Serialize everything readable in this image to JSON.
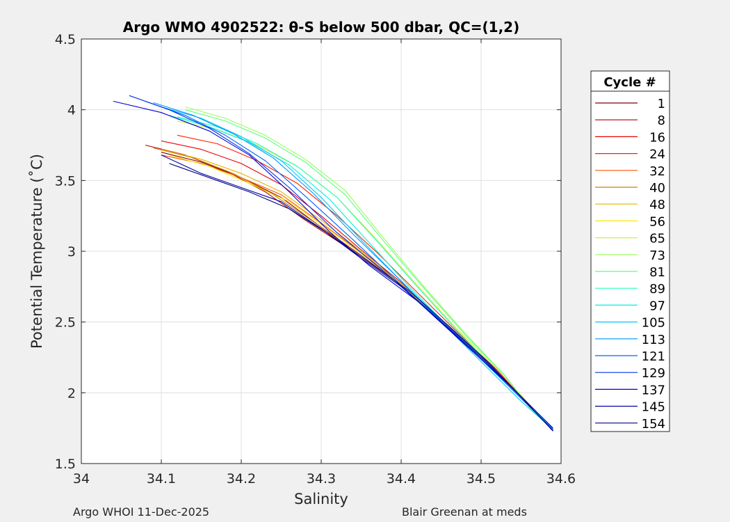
{
  "chart_data": {
    "type": "line",
    "title": "Argo WMO 4902522: θ-S below 500 dbar,  QC=(1,2)",
    "xlabel": "Salinity",
    "ylabel": "Potential Temperature (˚C)",
    "xlim": [
      34.0,
      34.6
    ],
    "ylim": [
      1.5,
      4.5
    ],
    "xticks": [
      "34",
      "34.1",
      "34.2",
      "34.3",
      "34.4",
      "34.5",
      "34.6"
    ],
    "yticks": [
      "1.5",
      "2",
      "2.5",
      "3",
      "3.5",
      "4",
      "4.5"
    ],
    "grid": true,
    "legend_title": "Cycle #",
    "legend_position": "right-outside",
    "colormap": "jet",
    "legend": [
      {
        "label": "1",
        "color": "#7f0000"
      },
      {
        "label": "8",
        "color": "#b40000"
      },
      {
        "label": "16",
        "color": "#e60000"
      },
      {
        "label": "24",
        "color": "#ff1e00"
      },
      {
        "label": "32",
        "color": "#ff5500"
      },
      {
        "label": "40",
        "color": "#c88200"
      },
      {
        "label": "48",
        "color": "#e6b400"
      },
      {
        "label": "56",
        "color": "#ffe600"
      },
      {
        "label": "65",
        "color": "#d2f03c"
      },
      {
        "label": "73",
        "color": "#96ff5a"
      },
      {
        "label": "81",
        "color": "#5aff82"
      },
      {
        "label": "89",
        "color": "#1effb4"
      },
      {
        "label": "97",
        "color": "#00f0dc"
      },
      {
        "label": "105",
        "color": "#00c8ff"
      },
      {
        "label": "113",
        "color": "#0096ff"
      },
      {
        "label": "121",
        "color": "#0064ff"
      },
      {
        "label": "129",
        "color": "#0032e6"
      },
      {
        "label": "137",
        "color": "#0000d2"
      },
      {
        "label": "145",
        "color": "#0000aa"
      },
      {
        "label": "154",
        "color": "#000080"
      }
    ],
    "series": [
      {
        "x": [
          34.1,
          34.15,
          34.2,
          34.25,
          34.3,
          34.35,
          34.4,
          34.45,
          34.5,
          34.55,
          34.59
        ],
        "y": [
          3.7,
          3.63,
          3.52,
          3.38,
          3.17,
          2.97,
          2.76,
          2.5,
          2.25,
          1.97,
          1.73
        ]
      },
      {
        "x": [
          34.08,
          34.13,
          34.18,
          34.23,
          34.28,
          34.34,
          34.4,
          34.45,
          34.5,
          34.55,
          34.59
        ],
        "y": [
          3.75,
          3.68,
          3.57,
          3.42,
          3.22,
          3.0,
          2.76,
          2.5,
          2.25,
          1.97,
          1.73
        ]
      },
      {
        "x": [
          34.1,
          34.15,
          34.2,
          34.25,
          34.3,
          34.35,
          34.4,
          34.45,
          34.5,
          34.55,
          34.59
        ],
        "y": [
          3.78,
          3.72,
          3.62,
          3.47,
          3.25,
          3.01,
          2.78,
          2.52,
          2.26,
          1.98,
          1.74
        ]
      },
      {
        "x": [
          34.12,
          34.17,
          34.22,
          34.27,
          34.32,
          34.37,
          34.42,
          34.47,
          34.52,
          34.56,
          34.59
        ],
        "y": [
          3.82,
          3.76,
          3.64,
          3.48,
          3.25,
          2.99,
          2.71,
          2.43,
          2.16,
          1.91,
          1.74
        ]
      },
      {
        "x": [
          34.1,
          34.15,
          34.2,
          34.25,
          34.3,
          34.35,
          34.4,
          34.45,
          34.5,
          34.55,
          34.59
        ],
        "y": [
          3.68,
          3.62,
          3.52,
          3.4,
          3.2,
          2.99,
          2.77,
          2.51,
          2.25,
          1.97,
          1.74
        ]
      },
      {
        "x": [
          34.09,
          34.14,
          34.19,
          34.24,
          34.29,
          34.34,
          34.4,
          34.45,
          34.5,
          34.55,
          34.59
        ],
        "y": [
          3.73,
          3.66,
          3.55,
          3.4,
          3.21,
          3.0,
          2.76,
          2.5,
          2.25,
          1.97,
          1.73
        ]
      },
      {
        "x": [
          34.1,
          34.15,
          34.2,
          34.25,
          34.3,
          34.35,
          34.4,
          34.45,
          34.5,
          34.55,
          34.59
        ],
        "y": [
          3.72,
          3.65,
          3.55,
          3.42,
          3.22,
          3.0,
          2.77,
          2.51,
          2.25,
          1.97,
          1.74
        ]
      },
      {
        "x": [
          34.11,
          34.16,
          34.21,
          34.26,
          34.31,
          34.36,
          34.41,
          34.46,
          34.51,
          34.55,
          34.59
        ],
        "y": [
          3.68,
          3.6,
          3.48,
          3.35,
          3.15,
          2.94,
          2.72,
          2.47,
          2.21,
          1.96,
          1.74
        ]
      },
      {
        "x": [
          34.12,
          34.17,
          34.22,
          34.27,
          34.32,
          34.37,
          34.42,
          34.47,
          34.52,
          34.56,
          34.59
        ],
        "y": [
          3.92,
          3.86,
          3.75,
          3.6,
          3.38,
          3.08,
          2.76,
          2.45,
          2.17,
          1.92,
          1.74
        ]
      },
      {
        "x": [
          34.13,
          34.18,
          34.23,
          34.28,
          34.33,
          34.38,
          34.43,
          34.48,
          34.53,
          34.56,
          34.59
        ],
        "y": [
          4.02,
          3.94,
          3.82,
          3.65,
          3.43,
          3.08,
          2.74,
          2.42,
          2.12,
          1.9,
          1.74
        ]
      },
      {
        "x": [
          34.13,
          34.18,
          34.23,
          34.28,
          34.33,
          34.38,
          34.43,
          34.48,
          34.53,
          34.56,
          34.59
        ],
        "y": [
          4.0,
          3.92,
          3.8,
          3.63,
          3.4,
          3.06,
          2.73,
          2.41,
          2.12,
          1.9,
          1.74
        ]
      },
      {
        "x": [
          34.12,
          34.17,
          34.22,
          34.27,
          34.32,
          34.37,
          34.42,
          34.47,
          34.52,
          34.56,
          34.59
        ],
        "y": [
          3.95,
          3.88,
          3.76,
          3.6,
          3.38,
          3.07,
          2.75,
          2.44,
          2.15,
          1.91,
          1.74
        ]
      },
      {
        "x": [
          34.11,
          34.16,
          34.21,
          34.26,
          34.31,
          34.36,
          34.41,
          34.46,
          34.51,
          34.56,
          34.59
        ],
        "y": [
          3.96,
          3.88,
          3.77,
          3.61,
          3.37,
          3.06,
          2.75,
          2.46,
          2.18,
          1.91,
          1.74
        ]
      },
      {
        "x": [
          34.1,
          34.15,
          34.2,
          34.25,
          34.3,
          34.35,
          34.4,
          34.45,
          34.5,
          34.55,
          34.59
        ],
        "y": [
          4.02,
          3.94,
          3.81,
          3.64,
          3.38,
          3.08,
          2.79,
          2.5,
          2.22,
          1.94,
          1.74
        ]
      },
      {
        "x": [
          34.09,
          34.14,
          34.19,
          34.24,
          34.29,
          34.34,
          34.4,
          34.45,
          34.5,
          34.55,
          34.59
        ],
        "y": [
          4.05,
          3.96,
          3.83,
          3.66,
          3.41,
          3.12,
          2.79,
          2.51,
          2.24,
          1.96,
          1.74
        ]
      },
      {
        "x": [
          34.08,
          34.13,
          34.18,
          34.23,
          34.28,
          34.34,
          34.4,
          34.45,
          34.5,
          34.55,
          34.59
        ],
        "y": [
          4.06,
          3.96,
          3.82,
          3.64,
          3.39,
          3.08,
          2.76,
          2.5,
          2.24,
          1.96,
          1.74
        ]
      },
      {
        "x": [
          34.06,
          34.11,
          34.16,
          34.21,
          34.26,
          34.32,
          34.38,
          34.44,
          34.5,
          34.55,
          34.59
        ],
        "y": [
          4.1,
          4.0,
          3.87,
          3.69,
          3.45,
          3.13,
          2.85,
          2.56,
          2.26,
          1.97,
          1.73
        ]
      },
      {
        "x": [
          34.04,
          34.1,
          34.16,
          34.21,
          34.26,
          34.31,
          34.36,
          34.42,
          34.48,
          34.54,
          34.59
        ],
        "y": [
          4.06,
          3.98,
          3.85,
          3.68,
          3.42,
          3.14,
          2.9,
          2.65,
          2.34,
          2.03,
          1.75
        ]
      },
      {
        "x": [
          34.1,
          34.15,
          34.2,
          34.25,
          34.3,
          34.35,
          34.4,
          34.45,
          34.5,
          34.55,
          34.59
        ],
        "y": [
          3.68,
          3.55,
          3.45,
          3.35,
          3.16,
          2.95,
          2.75,
          2.5,
          2.25,
          1.97,
          1.73
        ]
      },
      {
        "x": [
          34.11,
          34.16,
          34.21,
          34.26,
          34.31,
          34.36,
          34.41,
          34.46,
          34.51,
          34.55,
          34.59
        ],
        "y": [
          3.62,
          3.52,
          3.42,
          3.3,
          3.12,
          2.92,
          2.72,
          2.47,
          2.21,
          1.97,
          1.73
        ]
      }
    ]
  },
  "footer": {
    "left": "Argo WHOI 11-Dec-2025",
    "right": "Blair Greenan at meds"
  }
}
